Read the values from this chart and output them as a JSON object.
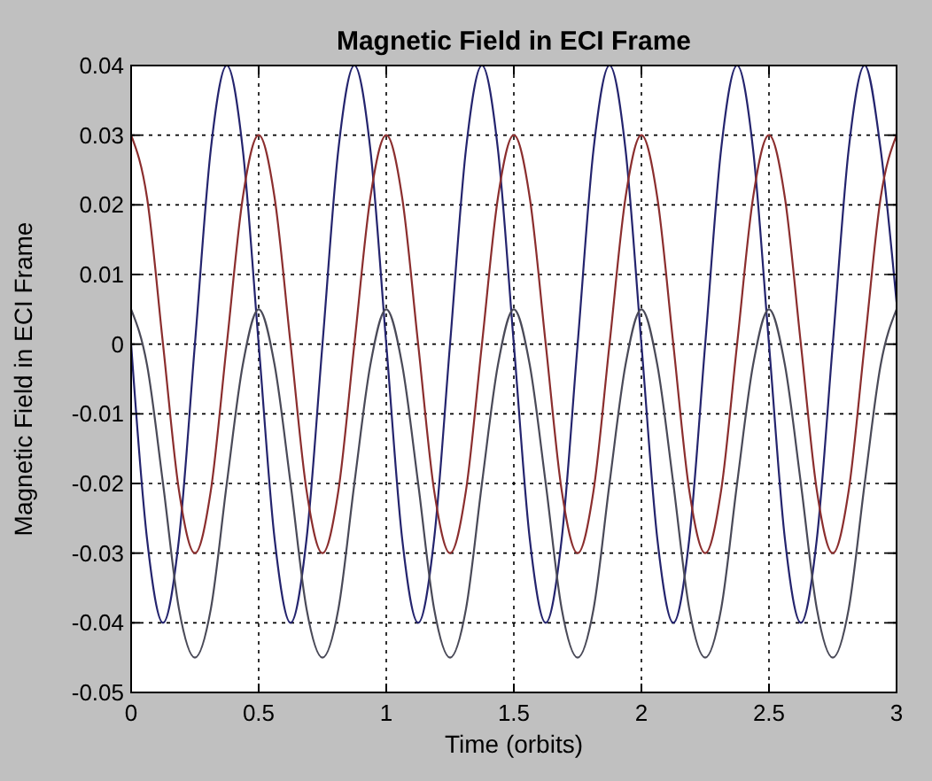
{
  "chart_data": {
    "type": "line",
    "title": "Magnetic Field in ECI Frame",
    "xlabel": "Time (orbits)",
    "ylabel": "Magnetic Field in ECI Frame",
    "x": [
      0,
      0.0625,
      0.125,
      0.1875,
      0.25,
      0.3125,
      0.375,
      0.4375,
      0.5,
      0.5625,
      0.625,
      0.6875,
      0.75,
      0.8125,
      0.875,
      0.9375,
      1,
      1.0625,
      1.125,
      1.1875,
      1.25,
      1.3125,
      1.375,
      1.4375,
      1.5,
      1.5625,
      1.625,
      1.6875,
      1.75,
      1.8125,
      1.875,
      1.9375,
      2,
      2.0625,
      2.125,
      2.1875,
      2.25,
      2.3125,
      2.375,
      2.4375,
      2.5,
      2.5625,
      2.625,
      2.6875,
      2.75,
      2.8125,
      2.875,
      2.9375,
      3
    ],
    "series": [
      {
        "color": "#24246e",
        "values": [
          0,
          -0.028,
          -0.04,
          -0.028,
          0,
          0.028,
          0.04,
          0.028,
          0,
          -0.028,
          -0.04,
          -0.028,
          0,
          0.028,
          0.04,
          0.028,
          0,
          -0.028,
          -0.04,
          -0.028,
          0,
          0.028,
          0.04,
          0.028,
          0,
          -0.028,
          -0.04,
          -0.028,
          0,
          0.028,
          0.04,
          0.028,
          0,
          -0.028,
          -0.04,
          -0.028,
          0,
          0.028,
          0.04,
          0.028,
          0,
          -0.028,
          -0.04,
          -0.028,
          0,
          0.028,
          0.04,
          0.028,
          0.006
        ]
      },
      {
        "color": "#8b2e2e",
        "values": [
          0.03,
          0.021,
          0,
          -0.021,
          -0.03,
          -0.021,
          0,
          0.021,
          0.03,
          0.021,
          0,
          -0.021,
          -0.03,
          -0.021,
          0,
          0.021,
          0.03,
          0.021,
          0,
          -0.021,
          -0.03,
          -0.021,
          0,
          0.021,
          0.03,
          0.021,
          0,
          -0.021,
          -0.03,
          -0.021,
          0,
          0.021,
          0.03,
          0.021,
          0,
          -0.021,
          -0.03,
          -0.021,
          0,
          0.021,
          0.03,
          0.021,
          0,
          -0.021,
          -0.03,
          -0.021,
          0,
          0.021,
          0.03
        ]
      },
      {
        "color": "#4a4a58",
        "values": [
          0.005,
          -0.003,
          -0.02,
          -0.038,
          -0.045,
          -0.038,
          -0.02,
          -0.003,
          0.005,
          -0.003,
          -0.02,
          -0.038,
          -0.045,
          -0.038,
          -0.02,
          -0.003,
          0.005,
          -0.003,
          -0.02,
          -0.038,
          -0.045,
          -0.038,
          -0.02,
          -0.003,
          0.005,
          -0.003,
          -0.02,
          -0.038,
          -0.045,
          -0.038,
          -0.02,
          -0.003,
          0.005,
          -0.003,
          -0.02,
          -0.038,
          -0.045,
          -0.038,
          -0.02,
          -0.003,
          0.005,
          -0.003,
          -0.02,
          -0.038,
          -0.045,
          -0.038,
          -0.02,
          -0.003,
          0.005
        ]
      }
    ],
    "xlim": [
      0,
      3
    ],
    "xticks": [
      0,
      0.5,
      1,
      1.5,
      2,
      2.5,
      3
    ],
    "ylim": [
      -0.05,
      0.04
    ],
    "yticks": [
      -0.05,
      -0.04,
      -0.03,
      -0.02,
      -0.01,
      0,
      0.01,
      0.02,
      0.03,
      0.04
    ],
    "grid": true,
    "marker": "none",
    "line_style": "solid"
  }
}
